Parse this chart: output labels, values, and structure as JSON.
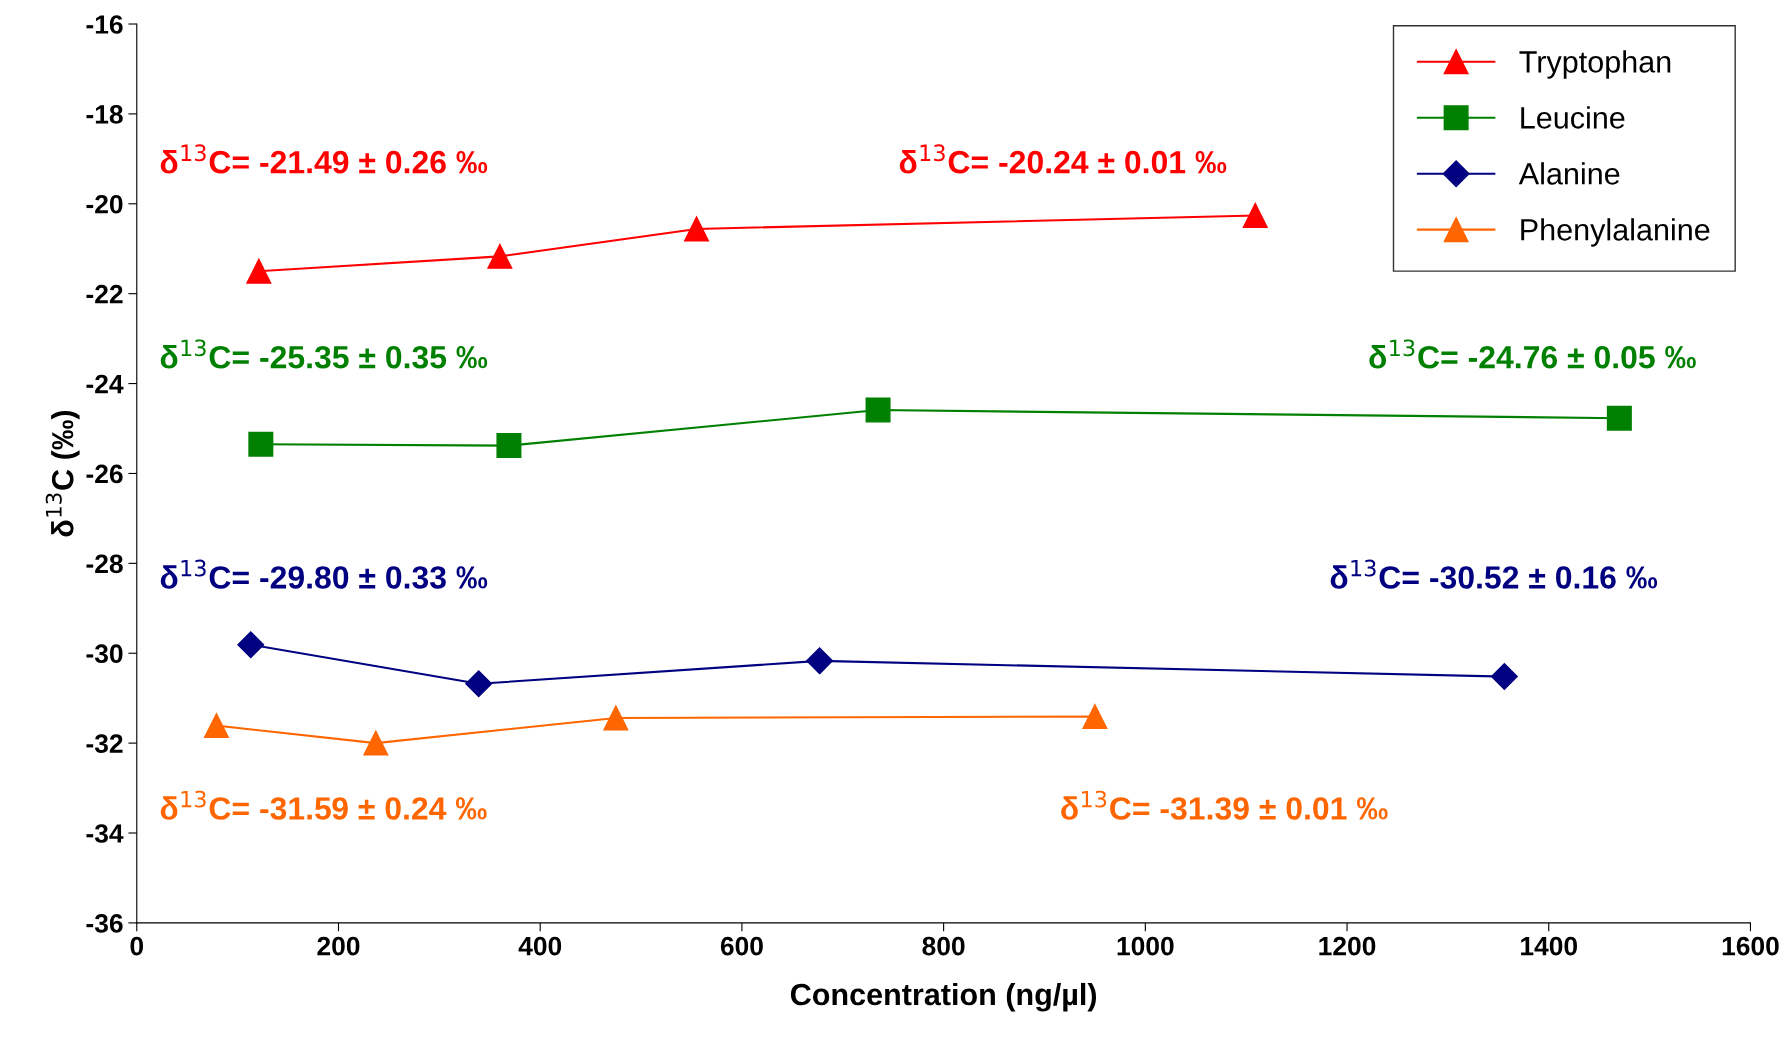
{
  "chart_data": {
    "type": "line",
    "xlabel": "Concentration (ng/µl)",
    "ylabel": "δ$^{13}$C (‰)",
    "xlim": [
      0,
      1600
    ],
    "xticks": [
      0,
      200,
      400,
      600,
      800,
      1000,
      1200,
      1400,
      1600
    ],
    "ylim": [
      -36,
      -16
    ],
    "yticks": [
      -36,
      -34,
      -32,
      -30,
      -28,
      -26,
      -24,
      -22,
      -20,
      -18,
      -16
    ],
    "grid": false,
    "legend": "top right",
    "line_style": "solid",
    "series": [
      {
        "name": "Tryptophan",
        "color": "#ff0000",
        "marker": "triangle",
        "x": [
          121,
          360,
          555,
          1109
        ],
        "values": [
          -21.5,
          -21.17,
          -20.56,
          -20.26
        ]
      },
      {
        "name": "Leucine",
        "color": "#008000",
        "marker": "square",
        "x": [
          123,
          369,
          735,
          1470
        ],
        "values": [
          -25.35,
          -25.38,
          -24.59,
          -24.77
        ]
      },
      {
        "name": "Alanine",
        "color": "#000080",
        "marker": "diamond",
        "x": [
          113,
          339,
          677,
          1356
        ],
        "values": [
          -29.81,
          -30.68,
          -30.17,
          -30.52
        ]
      },
      {
        "name": "Phenylalanine",
        "color": "#ff6600",
        "marker": "triangle",
        "x": [
          79,
          237,
          475,
          950
        ],
        "values": [
          -31.61,
          -32.0,
          -31.44,
          -31.41
        ]
      }
    ],
    "annotations": [
      "δ$^{13}$C= -21.49 ± 0.26 ‰",
      "δ$^{13}$C= -20.24 ± 0.01 ‰",
      "δ$^{13}$C= -25.35 ± 0.35 ‰",
      "δ$^{13}$C= -24.76 ± 0.05 ‰",
      "δ$^{13}$C= -29.80 ± 0.33 ‰",
      "δ$^{13}$C= -30.52 ± 0.16 ‰",
      "δ$^{13}$C= -31.59 ± 0.24 ‰",
      "δ$^{13}$C= -31.39 ± 0.01 ‰"
    ]
  }
}
